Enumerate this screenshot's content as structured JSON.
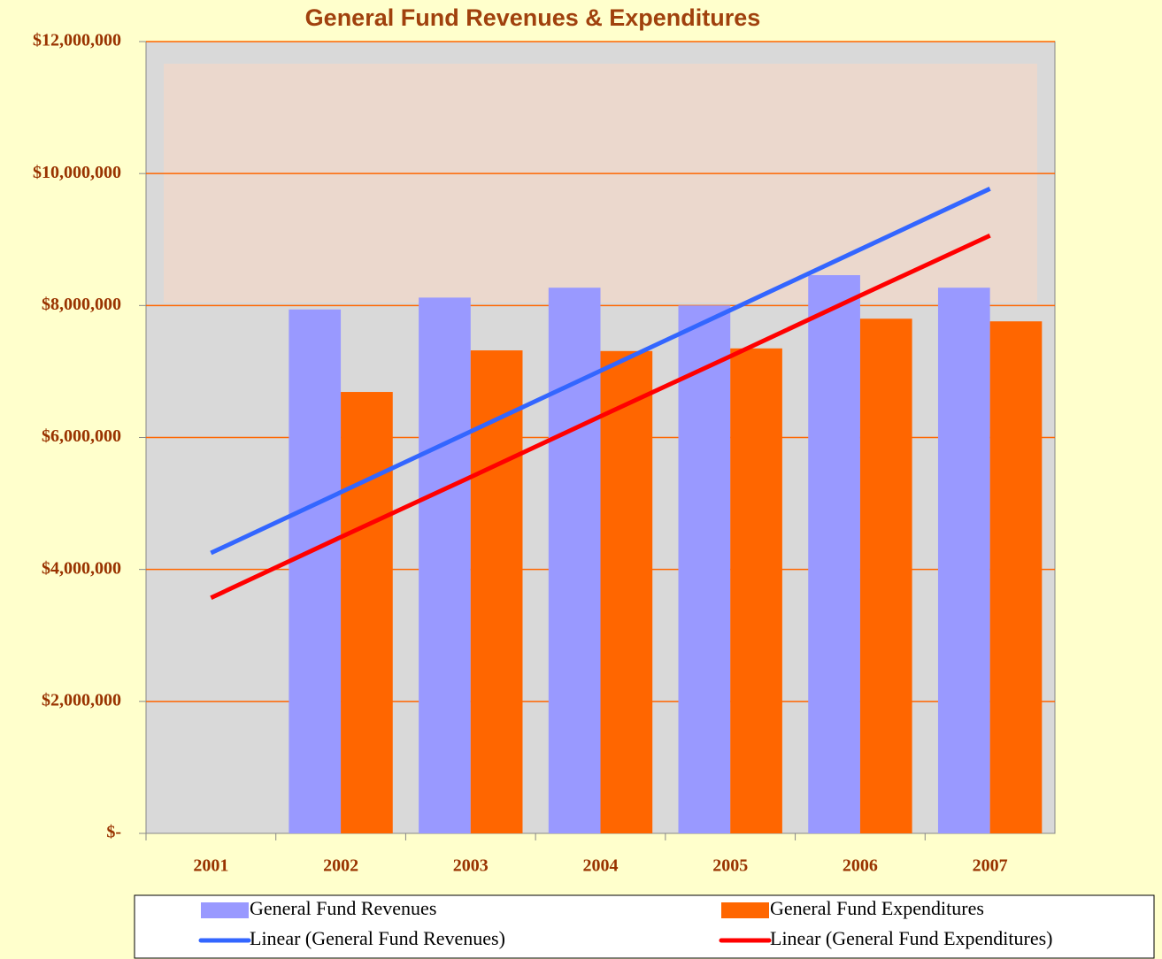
{
  "chart_data": {
    "type": "bar",
    "title": "General Fund Revenues & Expenditures",
    "categories": [
      "2001",
      "2002",
      "2003",
      "2004",
      "2005",
      "2006",
      "2007"
    ],
    "series": [
      {
        "name": "General Fund Revenues",
        "type": "bar",
        "color": "#9999ff",
        "values": [
          null,
          7940000,
          8120000,
          8270000,
          8000000,
          8460000,
          8270000
        ]
      },
      {
        "name": "General Fund Expenditures",
        "type": "bar",
        "color": "#ff6600",
        "values": [
          null,
          6690000,
          7320000,
          7310000,
          7350000,
          7800000,
          7760000
        ]
      },
      {
        "name": "Linear (General Fund Revenues)",
        "type": "line",
        "color": "#3366ff",
        "values": [
          4250000,
          5170000,
          6090000,
          7010000,
          7930000,
          8850000,
          9770000
        ]
      },
      {
        "name": "Linear (General Fund Expenditures)",
        "type": "line",
        "color": "#ff0000",
        "values": [
          3570000,
          4490000,
          5400000,
          6320000,
          7230000,
          8150000,
          9060000
        ]
      }
    ],
    "ylim": [
      0,
      12000000
    ],
    "yticks": [
      {
        "value": 0,
        "label": "$-"
      },
      {
        "value": 2000000,
        "label": "$2,000,000"
      },
      {
        "value": 4000000,
        "label": "$4,000,000"
      },
      {
        "value": 6000000,
        "label": "$6,000,000"
      },
      {
        "value": 8000000,
        "label": "$8,000,000"
      },
      {
        "value": 10000000,
        "label": "$10,000,000"
      },
      {
        "value": 12000000,
        "label": "$12,000,000"
      }
    ],
    "grid": true,
    "grid_color": "#ff6600",
    "legend": "bottom"
  }
}
